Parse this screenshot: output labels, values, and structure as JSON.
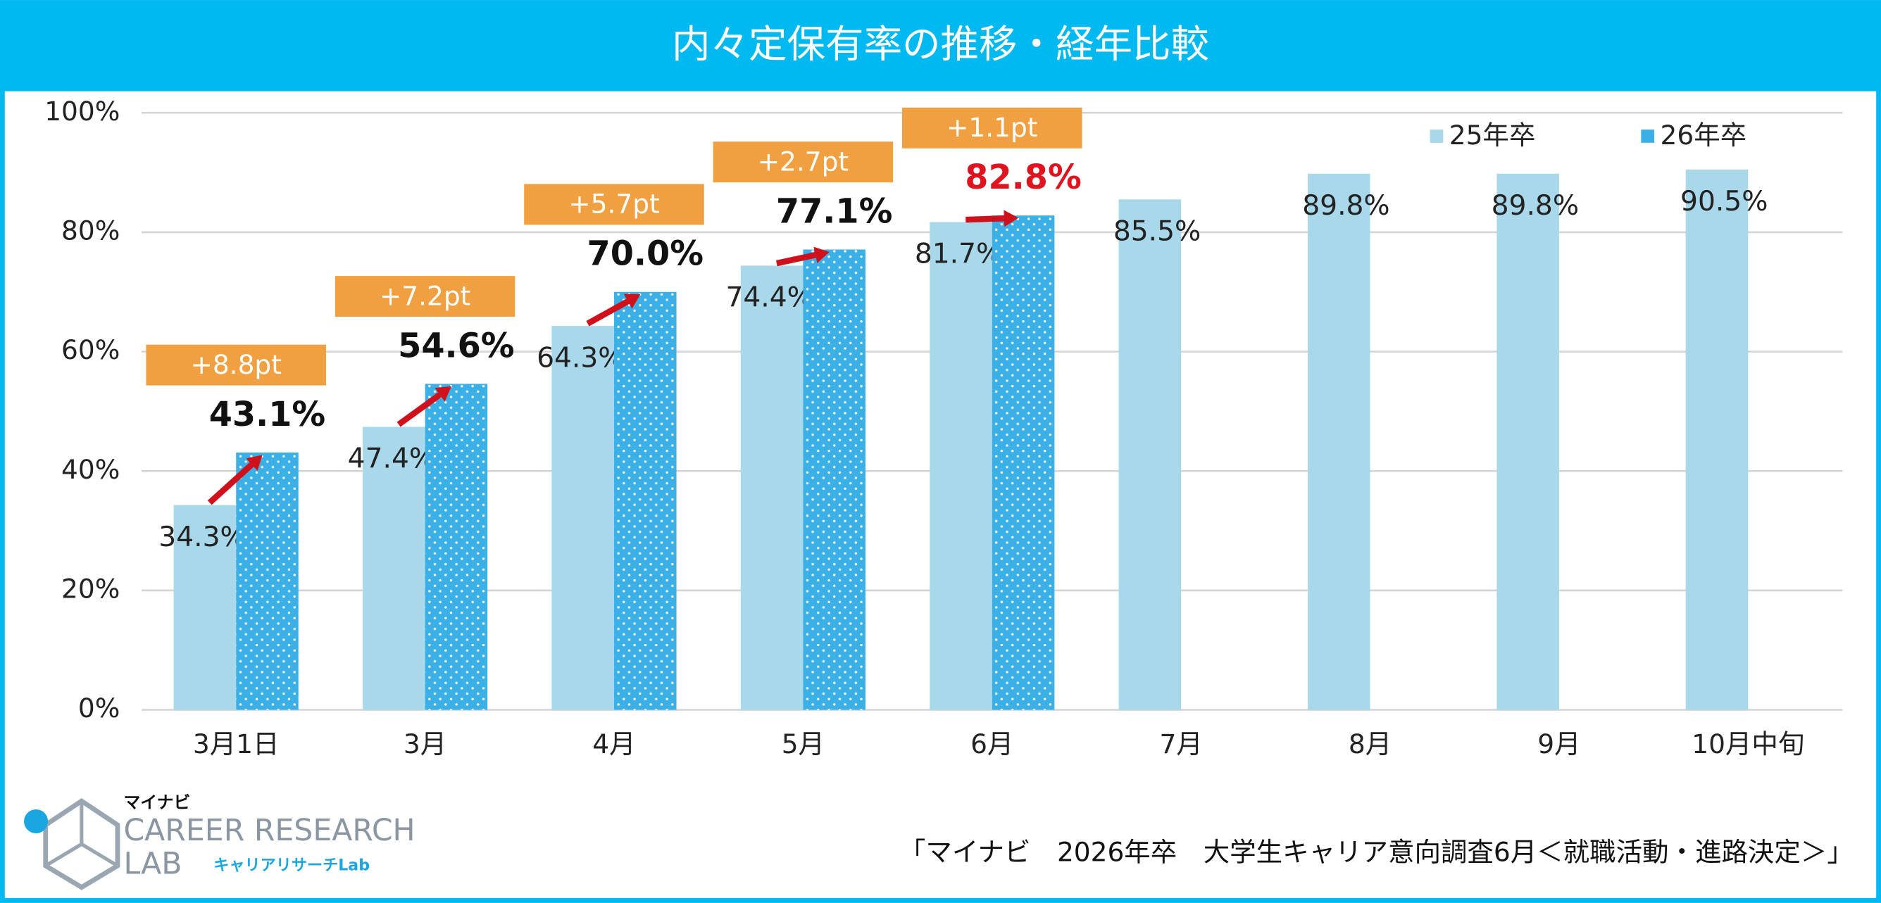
{
  "chart_data": {
    "type": "bar",
    "title": "内々定保有率の推移・経年比較",
    "categories": [
      "3月1日",
      "3月",
      "4月",
      "5月",
      "6月",
      "7月",
      "8月",
      "9月",
      "10月中旬"
    ],
    "series": [
      {
        "name": "25年卒",
        "color": "#a8d8ea",
        "values": [
          34.3,
          47.4,
          64.3,
          74.4,
          81.7,
          85.5,
          89.8,
          89.8,
          90.5
        ],
        "value_labels": [
          "34.3%",
          "47.4%",
          "64.3%",
          "74.4%",
          "81.7%",
          "85.5%",
          "89.8%",
          "89.8%",
          "90.5%"
        ]
      },
      {
        "name": "26年卒",
        "color": "#3bb0e6",
        "values": [
          43.1,
          54.6,
          70.0,
          77.1,
          82.8,
          null,
          null,
          null,
          null
        ],
        "value_labels": [
          "43.1%",
          "54.6%",
          "70.0%",
          "77.1%",
          "82.8%",
          null,
          null,
          null,
          null
        ],
        "value_label_colors": [
          "#111111",
          "#111111",
          "#111111",
          "#111111",
          "#e0141e",
          null,
          null,
          null,
          null
        ]
      }
    ],
    "annotations": [
      "+8.8pt",
      "+7.2pt",
      "+5.7pt",
      "+2.7pt",
      "+1.1pt"
    ],
    "ylim": [
      0,
      100
    ],
    "yticks": [
      {
        "value": 0,
        "label": "0%"
      },
      {
        "value": 20,
        "label": "20%"
      },
      {
        "value": 40,
        "label": "40%"
      },
      {
        "value": 60,
        "label": "60%"
      },
      {
        "value": 80,
        "label": "80%"
      },
      {
        "value": 100,
        "label": "100%"
      }
    ],
    "grid": true,
    "legend": "upper right"
  },
  "footer": {
    "logo_brand": "マイナビ",
    "logo_line1": "CAREER RESEARCH",
    "logo_line2": "LAB",
    "logo_sub": "キャリアリサーチLab",
    "source": "「マイナビ　2026年卒　大学生キャリア意向調査6月＜就職活動・進路決定＞」"
  }
}
